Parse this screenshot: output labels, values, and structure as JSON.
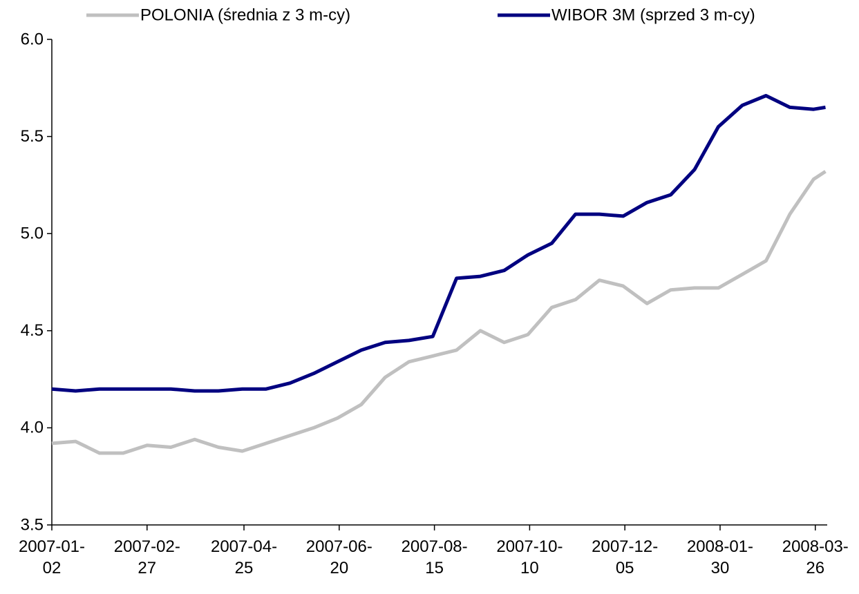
{
  "chart_data": {
    "type": "line",
    "x": [
      "2007-01-02",
      "2007-01-16",
      "2007-01-30",
      "2007-02-13",
      "2007-02-27",
      "2007-03-13",
      "2007-03-27",
      "2007-04-10",
      "2007-04-24",
      "2007-05-08",
      "2007-05-22",
      "2007-06-05",
      "2007-06-19",
      "2007-07-03",
      "2007-07-17",
      "2007-07-31",
      "2007-08-14",
      "2007-08-28",
      "2007-09-11",
      "2007-09-25",
      "2007-10-09",
      "2007-10-23",
      "2007-11-06",
      "2007-11-20",
      "2007-12-04",
      "2007-12-18",
      "2008-01-01",
      "2008-01-15",
      "2008-01-29",
      "2008-02-12",
      "2008-02-26",
      "2008-03-11",
      "2008-03-25",
      "2008-04-01"
    ],
    "series": [
      {
        "name": "POLONIA (średnia z 3 m-cy)",
        "color": "#c0c0c0",
        "values": [
          3.92,
          3.93,
          3.87,
          3.87,
          3.91,
          3.9,
          3.94,
          3.9,
          3.88,
          3.92,
          3.96,
          4.0,
          4.05,
          4.12,
          4.26,
          4.34,
          4.37,
          4.4,
          4.5,
          4.44,
          4.48,
          4.62,
          4.66,
          4.76,
          4.73,
          4.64,
          4.71,
          4.72,
          4.72,
          4.79,
          4.86,
          5.1,
          5.28,
          5.32
        ]
      },
      {
        "name": "WIBOR 3M (sprzed 3 m-cy)",
        "color": "#000080",
        "values": [
          4.2,
          4.19,
          4.2,
          4.2,
          4.2,
          4.2,
          4.19,
          4.19,
          4.2,
          4.2,
          4.23,
          4.28,
          4.34,
          4.4,
          4.44,
          4.45,
          4.47,
          4.77,
          4.78,
          4.81,
          4.89,
          4.95,
          5.1,
          5.1,
          5.09,
          5.16,
          5.2,
          5.33,
          5.55,
          5.66,
          5.71,
          5.65,
          5.64,
          5.65
        ]
      }
    ],
    "xlim": [
      "2007-01-02",
      "2008-04-02"
    ],
    "xticks": [
      "2007-01-02",
      "2007-02-27",
      "2007-04-25",
      "2007-06-20",
      "2007-08-15",
      "2007-10-10",
      "2007-12-05",
      "2008-01-30",
      "2008-03-26"
    ],
    "ylim": [
      3.5,
      6
    ],
    "yticks": [
      {
        "value": 3.5,
        "label": "3.5"
      },
      {
        "value": 4,
        "label": "4.0"
      },
      {
        "value": 4.5,
        "label": "4.5"
      },
      {
        "value": 5,
        "label": "5.0"
      },
      {
        "value": 5.5,
        "label": "5.5"
      },
      {
        "value": 6,
        "label": "6.0"
      }
    ],
    "grid": false,
    "legend": "top"
  }
}
